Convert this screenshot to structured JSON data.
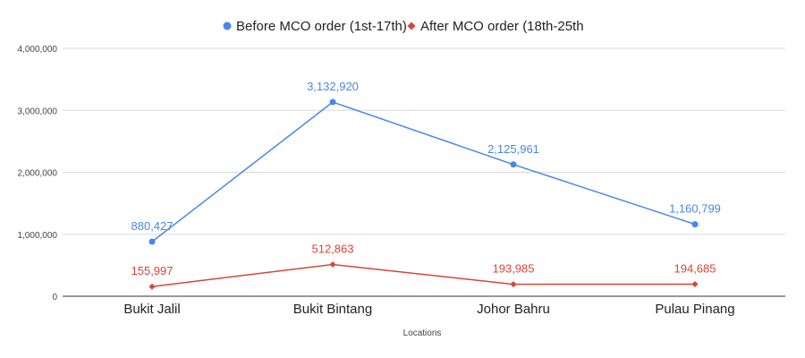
{
  "chart_data": {
    "type": "line",
    "title": "",
    "xlabel": "Locations",
    "ylabel": "",
    "categories": [
      "Bukit Jalil",
      "Bukit Bintang",
      "Johor Bahru",
      "Pulau Pinang"
    ],
    "series": [
      {
        "name": "Before MCO order (1st-17th)",
        "values": [
          880427,
          3132920,
          2125961,
          1160799
        ],
        "labels": [
          "880,427",
          "3,132,920",
          "2,125,961",
          "1,160,799"
        ],
        "color": "#4a86e8",
        "marker": "circle"
      },
      {
        "name": "After MCO order (18th-25th",
        "values": [
          155997,
          512863,
          193985,
          194685
        ],
        "labels": [
          "155,997",
          "512,863",
          "193,985",
          "194,685"
        ],
        "color": "#db4437",
        "marker": "diamond"
      }
    ],
    "ylim": [
      0,
      4000000
    ],
    "yticks": [
      0,
      1000000,
      2000000,
      3000000,
      4000000
    ],
    "ytick_labels": [
      "0",
      "1,000,000",
      "2,000,000",
      "3,000,000",
      "4,000,000"
    ],
    "grid": true,
    "legend_position": "top-center"
  }
}
